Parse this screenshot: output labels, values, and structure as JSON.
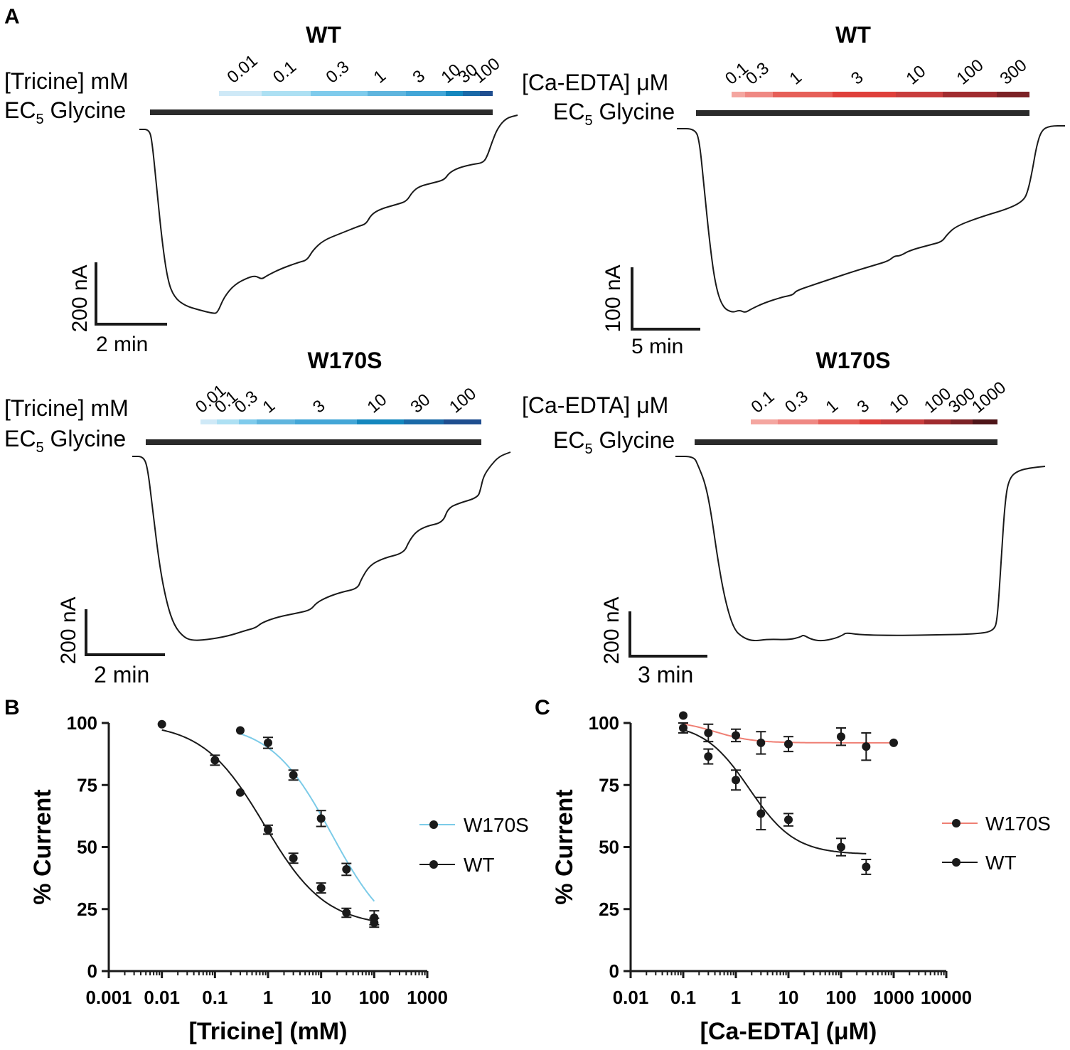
{
  "panel_labels": {
    "a": "A",
    "b": "B",
    "c": "C"
  },
  "legend_labels": {
    "b_w170s": "W170S",
    "b_wt": "WT",
    "c_w170s": "W170S",
    "c_wt": "WT"
  },
  "colors": {
    "trace": "#1a1a1a",
    "bar": "#2b2b2b",
    "w170s_b": "#7ccbe8",
    "w170s_c": "#ef7f74",
    "wt": "#1a1a1a"
  },
  "traces": [
    {
      "id": "tl",
      "title": "WT",
      "drug_label": "[Tricine] mM",
      "gly_label": "EC",
      "gly_sub": "5",
      "gly_rest": " Glycine",
      "concs": [
        "0.01",
        "0.1",
        "0.3",
        "1",
        "3",
        "10",
        "30",
        "100"
      ],
      "segment_colors": [
        "#cfe9f7",
        "#ade0f3",
        "#7fcbec",
        "#5fb5de",
        "#43a6d7",
        "#1487be",
        "#1a6aa8",
        "#1f4e8f"
      ],
      "scale_y_label": "200 nA",
      "scale_x_label": "2 min"
    },
    {
      "id": "tr",
      "title": "WT",
      "drug_label": "[Ca-EDTA] μM",
      "gly_label": "EC",
      "gly_sub": "5",
      "gly_rest": " Glycine",
      "concs": [
        "0.1",
        "0.3",
        "1",
        "3",
        "10",
        "100",
        "300"
      ],
      "segment_colors": [
        "#f4a6a0",
        "#ef8883",
        "#e65f58",
        "#df403b",
        "#c83d3d",
        "#a12c2f",
        "#7c2226"
      ],
      "scale_y_label": "100 nA",
      "scale_x_label": "5 min"
    },
    {
      "id": "bl",
      "title": "W170S",
      "drug_label": "[Tricine] mM",
      "gly_label": "EC",
      "gly_sub": "5",
      "gly_rest": " Glycine",
      "concs": [
        "0.01",
        "0.1",
        "0.3",
        "1",
        "3",
        "10",
        "30",
        "100"
      ],
      "segment_colors": [
        "#cfe9f7",
        "#ade0f3",
        "#7fcbec",
        "#5fb5de",
        "#43a6d7",
        "#1487be",
        "#1a6aa8",
        "#1f4e8f"
      ],
      "scale_y_label": "200 nA",
      "scale_x_label": "2 min"
    },
    {
      "id": "br",
      "title": "W170S",
      "drug_label": "[Ca-EDTA] μM",
      "gly_label": "EC",
      "gly_sub": "5",
      "gly_rest": " Glycine",
      "concs": [
        "0.1",
        "0.3",
        "1",
        "3",
        "10",
        "100",
        "300",
        "1000"
      ],
      "segment_colors": [
        "#f4a6a0",
        "#ef8883",
        "#e65f58",
        "#df403b",
        "#c83d3d",
        "#a12c2f",
        "#7c2226",
        "#4e1518"
      ],
      "scale_y_label": "200 nA",
      "scale_x_label": "3 min"
    }
  ],
  "chart_data": [
    {
      "panel": "B",
      "type": "scatter",
      "title": "",
      "xlabel": "[Tricine] (mM)",
      "ylabel": "% Current",
      "xscale": "log",
      "xlim": [
        0.001,
        1000
      ],
      "ylim": [
        0,
        100
      ],
      "xticks": [
        "0.001",
        "0.01",
        "0.1",
        "1",
        "10",
        "100",
        "1000"
      ],
      "yticks": [
        "0",
        "25",
        "50",
        "75",
        "100"
      ],
      "legend_position": "right",
      "series": [
        {
          "name": "W170S",
          "x": [
            0.3,
            1,
            3,
            10,
            30,
            100
          ],
          "y": [
            97,
            92,
            79,
            61.5,
            41,
            21.5
          ],
          "err": [
            0,
            2.2,
            2,
            3.2,
            2.4,
            2.8
          ],
          "fit": {
            "bottom": 10,
            "top": 100,
            "ic50": 16,
            "hill": 0.75
          }
        },
        {
          "name": "WT",
          "x": [
            0.01,
            0.1,
            0.3,
            1,
            3,
            10,
            30,
            100
          ],
          "y": [
            99.5,
            85,
            72,
            57,
            45.5,
            33.5,
            23.5,
            19.5
          ],
          "err": [
            0,
            2,
            0,
            1.8,
            2,
            2,
            1.8,
            1.8
          ],
          "fit": {
            "bottom": 18,
            "top": 100,
            "ic50": 0.85,
            "hill": 0.75
          }
        }
      ]
    },
    {
      "panel": "C",
      "type": "scatter",
      "title": "",
      "xlabel": "[Ca-EDTA] (μM)",
      "ylabel": "% Current",
      "xscale": "log",
      "xlim": [
        0.01,
        10000
      ],
      "ylim": [
        0,
        100
      ],
      "xticks": [
        "0.01",
        "0.1",
        "1",
        "10",
        "100",
        "1000",
        "10000"
      ],
      "yticks": [
        "0",
        "25",
        "50",
        "75",
        "100"
      ],
      "legend_position": "right",
      "series": [
        {
          "name": "W170S",
          "x": [
            0.1,
            0.3,
            1,
            3,
            10,
            100,
            300,
            1000
          ],
          "y": [
            103,
            96,
            95,
            92,
            91.5,
            94.5,
            90.5,
            92
          ],
          "err": [
            0,
            3.5,
            2.5,
            4.5,
            3,
            3.5,
            5.5,
            0
          ],
          "fit": {
            "bottom": 92,
            "top": 101,
            "ic50": 0.4,
            "hill": 1.2
          }
        },
        {
          "name": "WT",
          "x": [
            0.1,
            0.3,
            1,
            3,
            10,
            100,
            300
          ],
          "y": [
            98,
            86.5,
            77,
            63.5,
            61,
            50,
            42
          ],
          "err": [
            2,
            3,
            4,
            6.5,
            2.5,
            3.5,
            3
          ],
          "fit": {
            "bottom": 47,
            "top": 100,
            "ic50": 1.8,
            "hill": 1
          }
        }
      ]
    }
  ]
}
